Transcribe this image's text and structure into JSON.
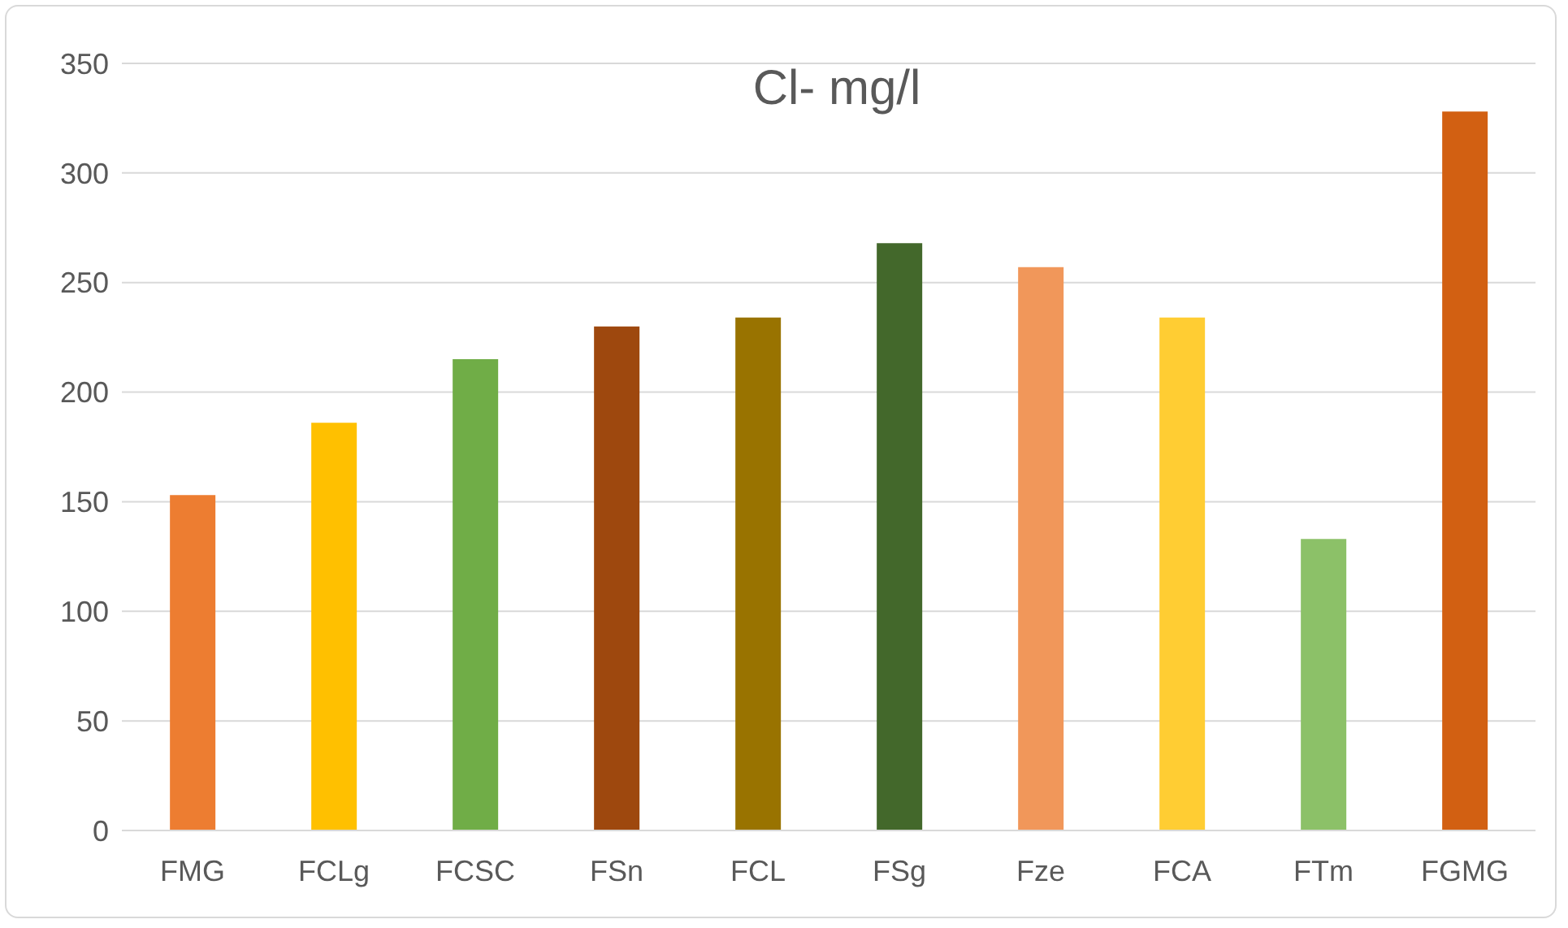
{
  "chart_data": {
    "type": "bar",
    "title": "Cl- mg/l",
    "categories": [
      "FMG",
      "FCLg",
      "FCSC",
      "FSn",
      "FCL",
      "FSg",
      "Fze",
      "FCA",
      "FTm",
      "FGMG"
    ],
    "values": [
      153,
      186,
      215,
      230,
      234,
      268,
      257,
      234,
      133,
      328
    ],
    "colors": [
      "#ed7d31",
      "#ffc000",
      "#70ad47",
      "#9e480e",
      "#997300",
      "#43682b",
      "#f1975a",
      "#ffcd33",
      "#8cc168",
      "#d26012"
    ],
    "ylim": [
      0,
      350
    ],
    "yticks": [
      0,
      50,
      100,
      150,
      200,
      250,
      300,
      350
    ],
    "grid": "y",
    "legend": false
  }
}
